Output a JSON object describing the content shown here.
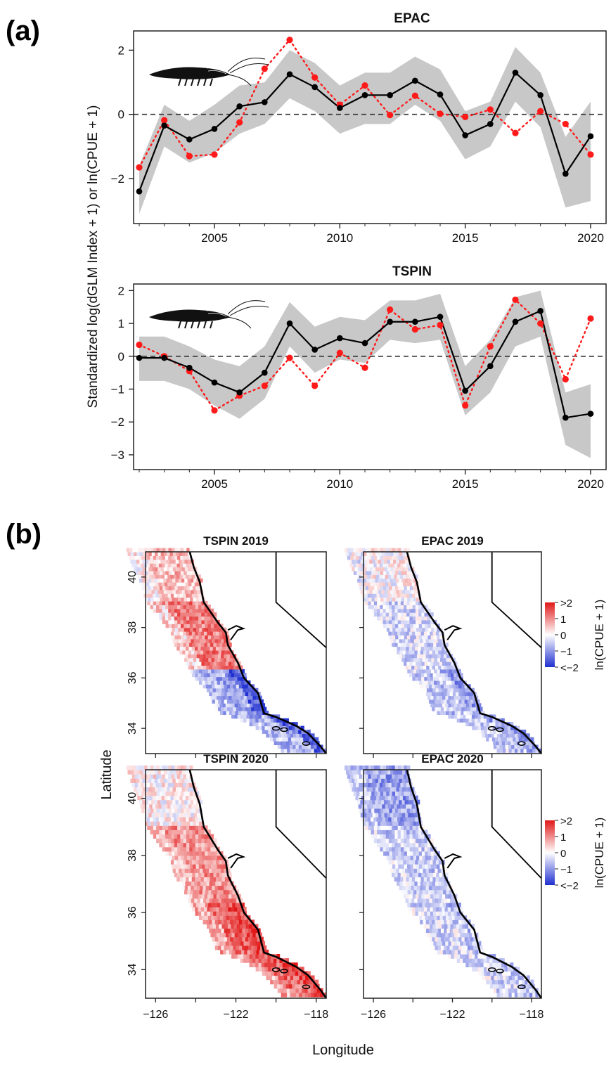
{
  "panel_labels": [
    "(a)",
    "(b)"
  ],
  "colors": {
    "model": "#000000",
    "observed": "#ff1a1a",
    "ribbon": "#c8c8c8",
    "cold": "#2030d0",
    "warm": "#e01818"
  },
  "chart_data": [
    {
      "type": "line",
      "title": "EPAC",
      "xlabel": "",
      "ylabel": "Standardized log(dGLM Index + 1) or ln(CPUE + 1)",
      "xlim": [
        2002,
        2020
      ],
      "ylim": [
        -3.4,
        2.6
      ],
      "xticks": [
        2005,
        2010,
        2015,
        2020
      ],
      "yticks": [
        -2,
        0,
        2
      ],
      "reference_line": 0,
      "grid": false,
      "icon": "krill-silhouette-icon",
      "x": [
        2002,
        2003,
        2004,
        2005,
        2006,
        2007,
        2008,
        2009,
        2010,
        2011,
        2012,
        2013,
        2014,
        2015,
        2016,
        2017,
        2018,
        2019,
        2020
      ],
      "series": [
        {
          "style": "solid-line-black-points",
          "values": [
            -2.4,
            -0.35,
            -0.78,
            -0.45,
            0.25,
            0.38,
            1.25,
            0.85,
            0.2,
            0.6,
            0.6,
            1.05,
            0.62,
            -0.65,
            -0.3,
            1.3,
            0.6,
            -1.85,
            -0.68
          ]
        },
        {
          "style": "dotted-line-red-points",
          "values": [
            -1.65,
            -0.18,
            -1.3,
            -1.25,
            -0.25,
            1.42,
            2.32,
            1.15,
            0.3,
            0.9,
            -0.02,
            0.58,
            0.02,
            -0.08,
            0.15,
            -0.58,
            0.1,
            -0.3,
            -1.25
          ]
        },
        {
          "style": "grey-ribbon",
          "lower": [
            -3.1,
            -1.0,
            -1.5,
            -1.2,
            -0.6,
            -0.3,
            0.5,
            0.1,
            -0.6,
            -0.3,
            -0.3,
            0.3,
            -0.2,
            -1.4,
            -1.0,
            0.4,
            -0.4,
            -2.9,
            -2.7
          ],
          "upper": [
            -1.6,
            0.3,
            -0.2,
            0.3,
            0.9,
            1.0,
            2.0,
            1.6,
            0.9,
            1.3,
            1.3,
            1.8,
            1.4,
            0.1,
            0.4,
            2.1,
            1.3,
            -0.7,
            0.4
          ]
        }
      ]
    },
    {
      "type": "line",
      "title": "TSPIN",
      "xlabel": "",
      "ylabel": "",
      "xlim": [
        2002,
        2020
      ],
      "ylim": [
        -3.45,
        2.2
      ],
      "xticks": [
        2005,
        2010,
        2015,
        2020
      ],
      "yticks": [
        -3,
        -2,
        -1,
        0,
        1,
        2
      ],
      "reference_line": 0,
      "grid": false,
      "icon": "krill-silhouette-icon",
      "x": [
        2002,
        2003,
        2004,
        2005,
        2006,
        2007,
        2008,
        2009,
        2010,
        2011,
        2012,
        2013,
        2014,
        2015,
        2016,
        2017,
        2018,
        2019,
        2020
      ],
      "series": [
        {
          "style": "solid-line-black-points",
          "values": [
            -0.05,
            -0.05,
            -0.35,
            -0.8,
            -1.1,
            -0.5,
            1.0,
            0.2,
            0.55,
            0.4,
            1.05,
            1.05,
            1.2,
            -1.05,
            -0.3,
            1.05,
            1.38,
            -1.87,
            -1.75
          ]
        },
        {
          "style": "dotted-line-red-points",
          "values": [
            0.35,
            0.0,
            -0.45,
            -1.65,
            -1.2,
            -0.9,
            -0.05,
            -0.9,
            0.1,
            -0.35,
            1.42,
            0.82,
            0.95,
            -1.5,
            0.3,
            1.72,
            1.0,
            -0.7,
            1.15
          ]
        },
        {
          "style": "grey-ribbon",
          "lower": [
            -0.75,
            -0.75,
            -1.0,
            -1.5,
            -1.9,
            -1.3,
            0.3,
            -0.5,
            -0.1,
            -0.2,
            0.5,
            0.4,
            0.5,
            -1.8,
            -1.1,
            0.3,
            0.6,
            -2.7,
            -3.1
          ],
          "upper": [
            0.6,
            0.6,
            0.3,
            -0.1,
            -0.3,
            0.3,
            1.65,
            0.9,
            1.2,
            1.1,
            1.7,
            1.7,
            1.9,
            -0.3,
            0.5,
            1.8,
            2.0,
            -1.1,
            -0.85
          ]
        }
      ]
    },
    {
      "type": "heatmap",
      "title": "TSPIN 2019",
      "ylabel": "",
      "xlim": [
        -126.5,
        -117.5
      ],
      "ylim": [
        33,
        41
      ],
      "xticks": [],
      "yticks": [
        34,
        36,
        38,
        40
      ],
      "pattern": {
        "north": 0.55,
        "mid": 1.1,
        "south": -0.8,
        "inshore_south": -1.6,
        "offshore": -0.4
      }
    },
    {
      "type": "heatmap",
      "title": "EPAC 2019",
      "xlim": [
        -126.5,
        -117.5
      ],
      "ylim": [
        33,
        41
      ],
      "xticks": [],
      "yticks": [],
      "pattern": {
        "north": 0.05,
        "mid": -0.35,
        "south": -0.55,
        "inshore_south": -0.9,
        "offshore": -0.3
      },
      "colorbar": {
        "label": "ln(CPUE + 1)",
        "ticks": [
          ">2",
          "1",
          "0",
          "−1",
          "<−2"
        ],
        "range": [
          -2,
          2
        ]
      }
    },
    {
      "type": "heatmap",
      "title": "TSPIN 2020",
      "ylabel": "",
      "xlabel": "",
      "xlim": [
        -126.5,
        -117.5
      ],
      "ylim": [
        33,
        41
      ],
      "xticks": [
        -126,
        -122,
        -118
      ],
      "yticks": [
        34,
        36,
        38,
        40
      ],
      "pattern": {
        "north": 0.1,
        "mid": 0.9,
        "south": 1.3,
        "inshore_south": 1.6,
        "offshore": 0.15
      }
    },
    {
      "type": "heatmap",
      "title": "EPAC 2020",
      "xlim": [
        -126.5,
        -117.5
      ],
      "ylim": [
        33,
        41
      ],
      "xticks": [
        -126,
        -122,
        -118
      ],
      "yticks": [],
      "pattern": {
        "north": -0.9,
        "mid": -0.45,
        "south": -0.35,
        "inshore_south": -0.6,
        "offshore": -0.3
      },
      "colorbar": {
        "label": "ln(CPUE + 1)",
        "ticks": [
          ">2",
          "1",
          "0",
          "−1",
          "<−2"
        ],
        "range": [
          -2,
          2
        ]
      }
    }
  ],
  "shared_axis_labels": {
    "ylabel_b": "Latitude",
    "xlabel_b": "Longitude"
  }
}
